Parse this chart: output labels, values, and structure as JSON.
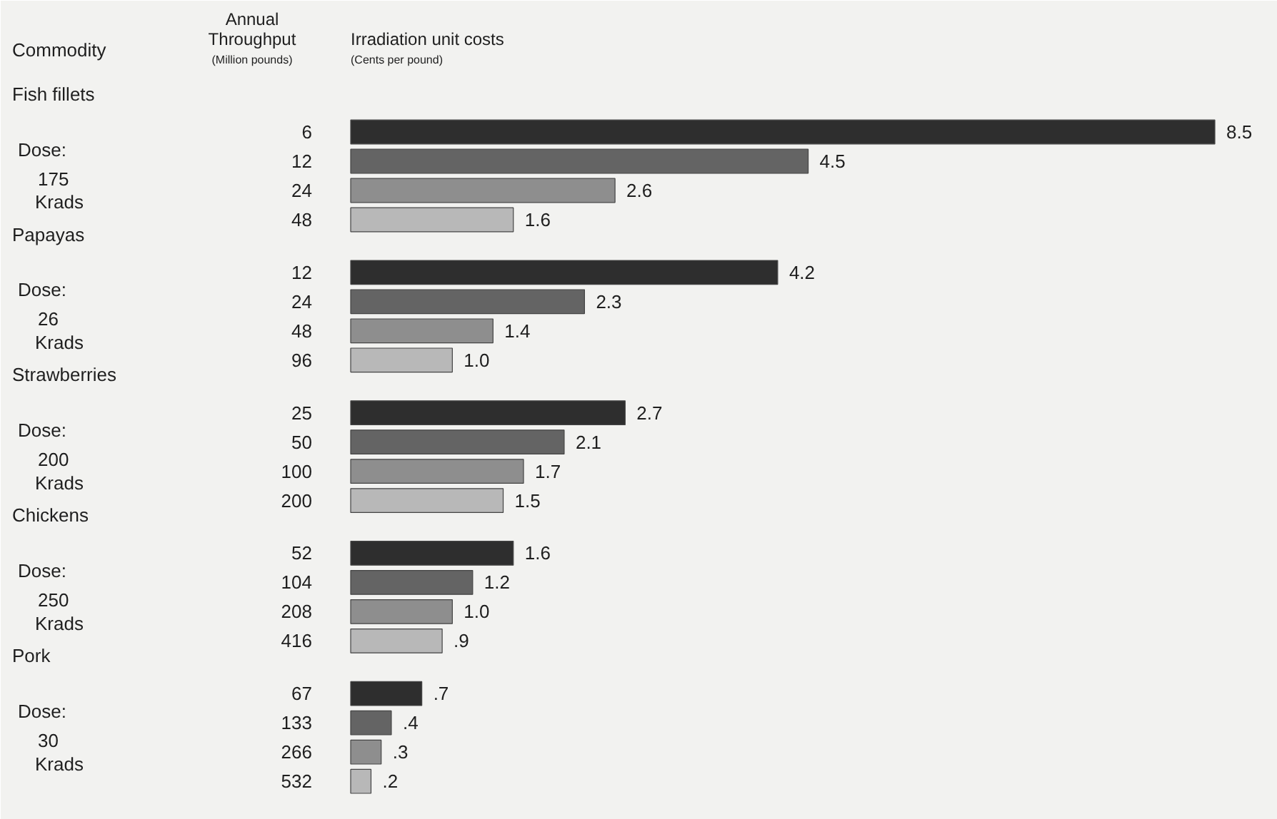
{
  "chart_data": {
    "type": "bar",
    "orientation": "horizontal",
    "categories": [
      "6",
      "12",
      "24",
      "48",
      "12",
      "24",
      "48",
      "96",
      "25",
      "50",
      "100",
      "200",
      "52",
      "104",
      "208",
      "416",
      "67",
      "133",
      "266",
      "532"
    ],
    "values": [
      8.5,
      4.5,
      2.6,
      1.6,
      4.2,
      2.3,
      1.4,
      1.0,
      2.7,
      2.1,
      1.7,
      1.5,
      1.6,
      1.2,
      1.0,
      0.9,
      0.7,
      0.4,
      0.3,
      0.2
    ],
    "value_labels": [
      "8.5",
      "4.5",
      "2.6",
      "1.6",
      "4.2",
      "2.3",
      "1.4",
      "1.0",
      "2.7",
      "2.1",
      "1.7",
      "1.5",
      "1.6",
      "1.2",
      "1.0",
      ".9",
      ".7",
      ".4",
      ".3",
      ".2"
    ],
    "colors": [
      "#2e2e2e",
      "#646464",
      "#8e8e8e",
      "#b8b8b8",
      "#2e2e2e",
      "#646464",
      "#8e8e8e",
      "#b8b8b8",
      "#2e2e2e",
      "#646464",
      "#8e8e8e",
      "#b8b8b8",
      "#2e2e2e",
      "#646464",
      "#8e8e8e",
      "#b8b8b8",
      "#2e2e2e",
      "#646464",
      "#8e8e8e",
      "#b8b8b8"
    ],
    "annotations": [
      "Commodity",
      "Annual",
      "Throughput",
      "(Million pounds)",
      "Irradiation unit costs",
      "(Cents per pound)",
      "Fish fillets",
      "Dose:",
      "175",
      "Krads",
      "Papayas",
      "Dose:",
      "26",
      "Krads",
      "Strawberries",
      "Dose:",
      "200",
      "Krads",
      "Chickens",
      "Dose:",
      "250",
      "Krads",
      "Pork",
      "Dose:",
      "30",
      "Krads"
    ]
  }
}
